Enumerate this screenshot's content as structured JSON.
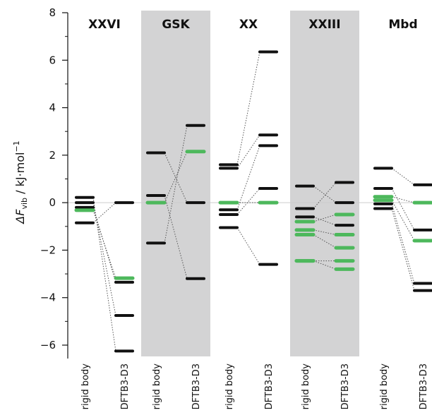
{
  "chart_data": {
    "type": "scatter",
    "title": "",
    "ylabel": {
      "prefix": "ΔF",
      "subscript": "vib",
      "unit_main": " / kJ·mol",
      "unit_sup": "−1"
    },
    "ylim": [
      -6.5,
      8
    ],
    "yticks": [
      -6,
      -4,
      -2,
      0,
      2,
      4,
      6,
      8
    ],
    "ytick_labels": [
      "−6",
      "−4",
      "−2",
      "0",
      "2",
      "4",
      "6",
      "8"
    ],
    "zero_line": true,
    "grid": false,
    "colors": {
      "level": "#111111",
      "highlight": "#4db85c",
      "panel_shade": "#d3d3d4",
      "connector": "#555555",
      "zero_line": "#cccccc"
    },
    "methods": [
      "rigid body",
      "DFTB3-D3"
    ],
    "panels": [
      {
        "name": "XXVI",
        "shaded": false,
        "levels": [
          {
            "rb": 0.22,
            "dftb": -6.25,
            "highlight": false
          },
          {
            "rb": 0.0,
            "dftb": -4.75,
            "highlight": false
          },
          {
            "rb": -0.2,
            "dftb": -3.35,
            "highlight": false
          },
          {
            "rb": -0.32,
            "dftb": -3.18,
            "highlight": true
          },
          {
            "rb": -0.85,
            "dftb": 0.0,
            "highlight": false
          }
        ]
      },
      {
        "name": "GSK",
        "shaded": true,
        "levels": [
          {
            "rb": 2.1,
            "dftb": 0.0,
            "highlight": false
          },
          {
            "rb": 0.3,
            "dftb": -3.2,
            "highlight": false
          },
          {
            "rb": 0.0,
            "dftb": 2.15,
            "highlight": true
          },
          {
            "rb": -1.7,
            "dftb": 3.25,
            "highlight": false
          }
        ]
      },
      {
        "name": "XX",
        "shaded": false,
        "levels": [
          {
            "rb": 1.6,
            "dftb": 6.35,
            "highlight": false
          },
          {
            "rb": 1.45,
            "dftb": 2.85,
            "highlight": false
          },
          {
            "rb": 0.0,
            "dftb": 0.0,
            "highlight": true
          },
          {
            "rb": -0.3,
            "dftb": 2.4,
            "highlight": false
          },
          {
            "rb": -0.5,
            "dftb": 0.6,
            "highlight": false
          },
          {
            "rb": -1.05,
            "dftb": -2.6,
            "highlight": false
          }
        ]
      },
      {
        "name": "XXIII",
        "shaded": true,
        "levels": [
          {
            "rb": 0.7,
            "dftb": 0.0,
            "highlight": false
          },
          {
            "rb": -0.25,
            "dftb": 0.85,
            "highlight": false
          },
          {
            "rb": -0.6,
            "dftb": -0.95,
            "highlight": false
          },
          {
            "rb": -0.8,
            "dftb": -0.5,
            "highlight": true
          },
          {
            "rb": -1.15,
            "dftb": -1.35,
            "highlight": true
          },
          {
            "rb": -1.35,
            "dftb": -1.9,
            "highlight": true
          },
          {
            "rb": -2.45,
            "dftb": -2.45,
            "highlight": true
          },
          {
            "rb": -2.45,
            "dftb": -2.8,
            "highlight": true
          }
        ]
      },
      {
        "name": "Mbd",
        "shaded": false,
        "levels": [
          {
            "rb": 1.45,
            "dftb": 0.75,
            "highlight": false
          },
          {
            "rb": 0.6,
            "dftb": -1.15,
            "highlight": false
          },
          {
            "rb": 0.25,
            "dftb": 0.0,
            "highlight": true
          },
          {
            "rb": 0.1,
            "dftb": -1.6,
            "highlight": true
          },
          {
            "rb": -0.05,
            "dftb": -3.4,
            "highlight": false
          },
          {
            "rb": -0.25,
            "dftb": -3.7,
            "highlight": false
          }
        ]
      }
    ]
  }
}
